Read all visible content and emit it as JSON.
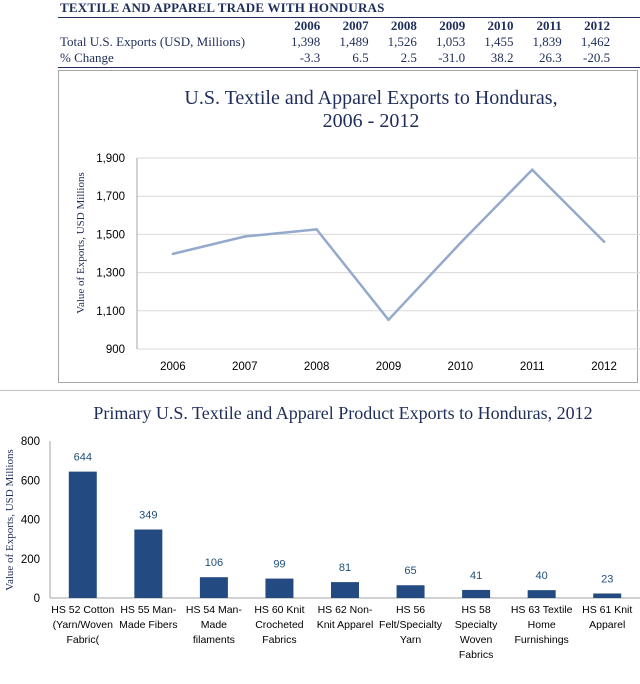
{
  "table": {
    "title": "TEXTILE AND APPAREL TRADE WITH HONDURAS",
    "years": [
      "2006",
      "2007",
      "2008",
      "2009",
      "2010",
      "2011",
      "2012"
    ],
    "rows": [
      {
        "label": "Total U.S. Exports (USD, Millions)",
        "values": [
          "1,398",
          "1,489",
          "1,526",
          "1,053",
          "1,455",
          "1,839",
          "1,462"
        ]
      },
      {
        "label": "% Change",
        "values": [
          "-3.3",
          "6.5",
          "2.5",
          "-31.0",
          "38.2",
          "26.3",
          "-20.5"
        ]
      }
    ]
  },
  "chart_data": [
    {
      "type": "line",
      "title": "U.S. Textile and Apparel Exports to Honduras,",
      "title_line2": "2006 - 2012",
      "ylabel": "Value of Exports, USD Millions",
      "xlabel": "",
      "x": [
        "2006",
        "2007",
        "2008",
        "2009",
        "2010",
        "2011",
        "2012"
      ],
      "series": [
        {
          "values": [
            1398,
            1489,
            1526,
            1053,
            1455,
            1839,
            1462
          ],
          "color": "#95a9cc"
        }
      ],
      "ylim": [
        900,
        1900
      ],
      "yticks": [
        900,
        1100,
        1300,
        1500,
        1700,
        1900
      ],
      "ytick_labels": [
        "900",
        "1,100",
        "1,300",
        "1,500",
        "1,700",
        "1,900"
      ],
      "grid": true,
      "legend": "none"
    },
    {
      "type": "bar",
      "title": "Primary U.S. Textile and Apparel Product Exports to Honduras, 2012",
      "ylabel": "Value of Exports, USD Millions",
      "xlabel": "",
      "categories": [
        [
          "HS 52 Cotton",
          "(Yarn/Woven",
          "Fabric("
        ],
        [
          "HS 55 Man-",
          "Made Fibers"
        ],
        [
          "HS 54 Man-",
          "Made",
          "filaments"
        ],
        [
          "HS 60 Knit",
          "Crocheted",
          "Fabrics"
        ],
        [
          "HS 62 Non-",
          "Knit Apparel"
        ],
        [
          "HS 56",
          "Felt/Specialty",
          "Yarn"
        ],
        [
          "HS 58",
          "Specialty",
          "Woven",
          "Fabrics"
        ],
        [
          "HS 63 Textile",
          "Home",
          "Furnishings"
        ],
        [
          "HS 61 Knit",
          "Apparel"
        ]
      ],
      "values": [
        644,
        349,
        106,
        99,
        81,
        65,
        41,
        40,
        23
      ],
      "data_labels": [
        "644",
        "349",
        "106",
        "99",
        "81",
        "65",
        "41",
        "40",
        "23"
      ],
      "ylim": [
        0,
        800
      ],
      "yticks": [
        0,
        200,
        400,
        600,
        800
      ],
      "bar_color": "#234b82",
      "label_color": "#1f4e79",
      "grid": false,
      "legend": "none"
    }
  ]
}
